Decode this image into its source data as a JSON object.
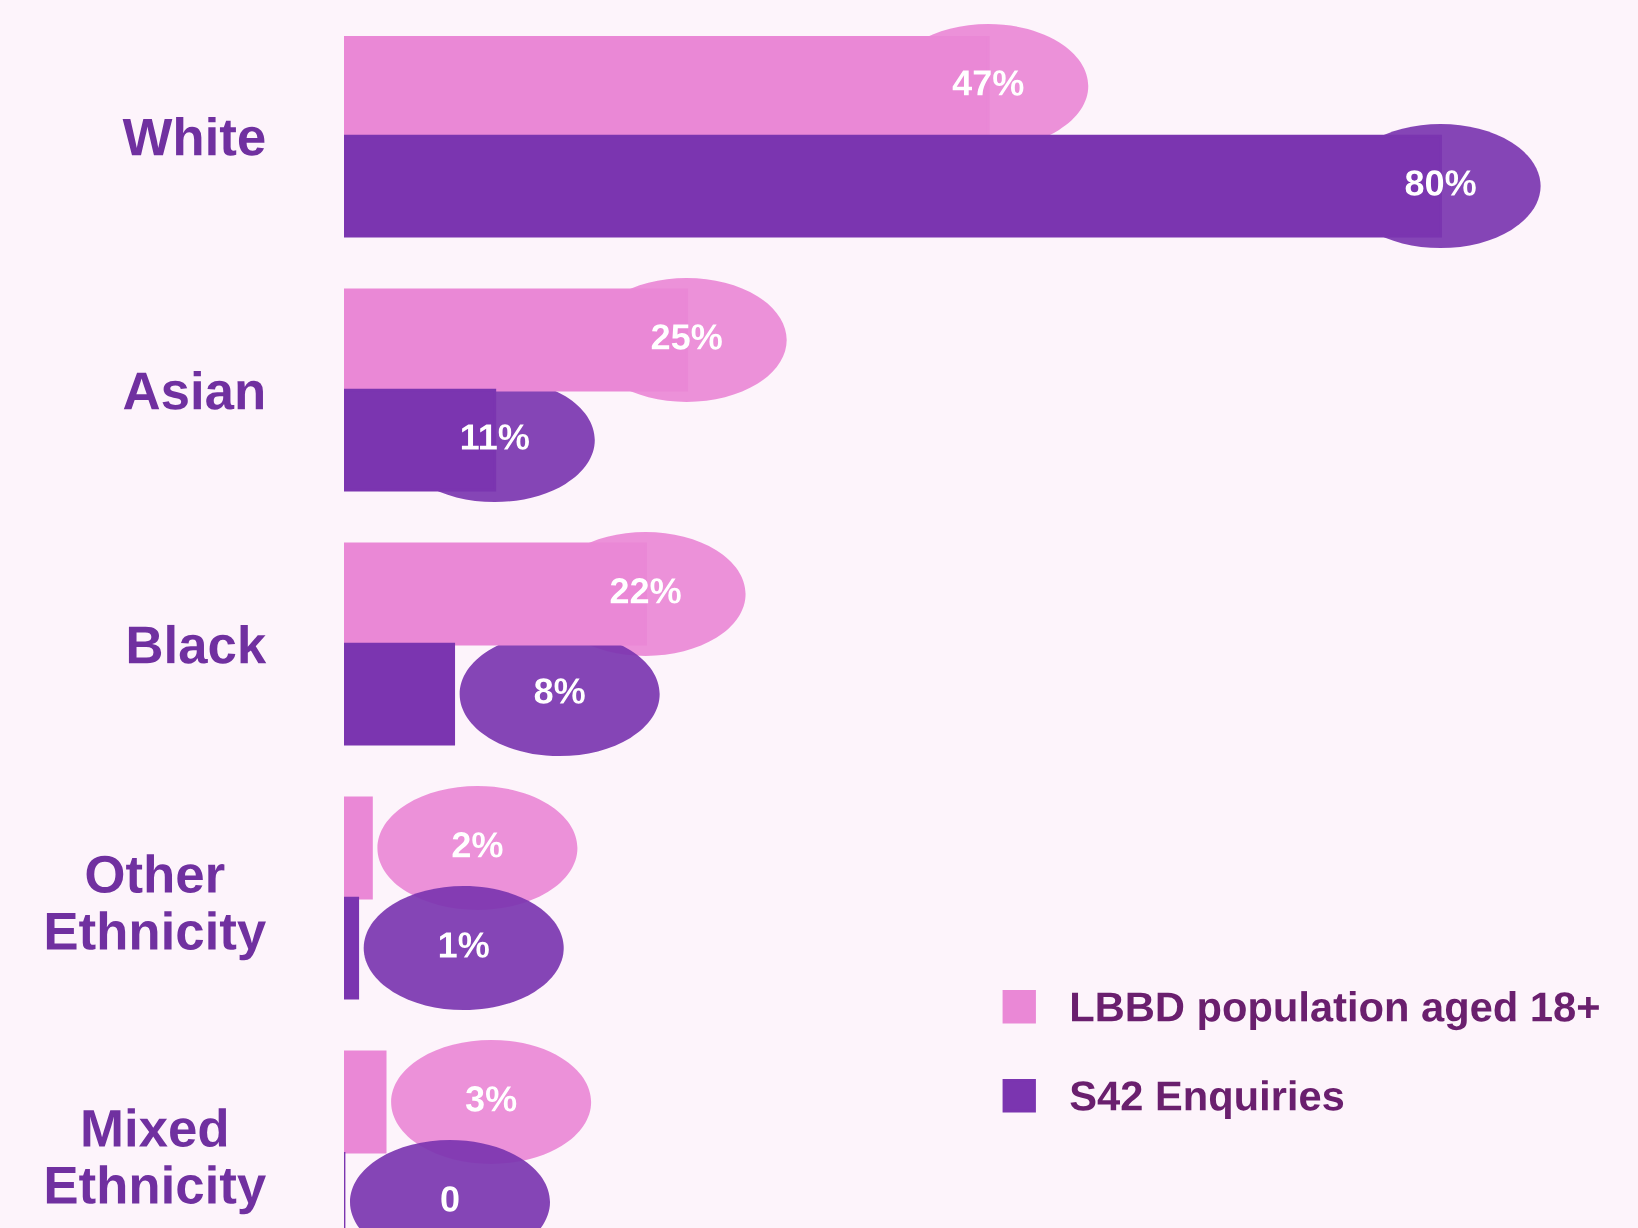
{
  "chart_data": {
    "type": "bar",
    "orientation": "horizontal",
    "categories": [
      "White",
      "Asian",
      "Black",
      "Other\nEthnicity",
      "Mixed\nEthnicity"
    ],
    "series": [
      {
        "name": "LBBD population aged 18+",
        "color": "#ea88d6",
        "values": [
          47,
          25,
          22,
          2,
          3
        ],
        "value_labels": [
          "47%",
          "25%",
          "22%",
          "2%",
          "3%"
        ]
      },
      {
        "name": "S42 Enquiries",
        "color": "#7b35b0",
        "values": [
          80,
          11,
          8,
          1,
          0
        ],
        "value_labels": [
          "80%",
          "11%",
          "8%",
          "1%",
          "0"
        ]
      }
    ],
    "legend": "bottom right",
    "grid": false
  }
}
